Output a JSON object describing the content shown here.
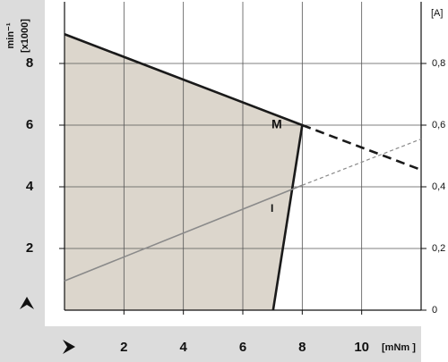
{
  "chart_data": {
    "type": "line",
    "y_label": "min⁻¹",
    "y_unit": "[x1000]",
    "y2_label": "[A]",
    "x_label": "[mNm ]",
    "xlim": [
      0,
      12
    ],
    "xticks": [
      2,
      4,
      6,
      8,
      10
    ],
    "ylim": [
      0,
      10
    ],
    "yticks": [
      2,
      4,
      6,
      8
    ],
    "y2lim": [
      0,
      1
    ],
    "y2ticks": [
      0,
      {
        "value": 0.2,
        "label": "0,2"
      },
      {
        "value": 0.4,
        "label": "0,4"
      },
      {
        "value": 0.6,
        "label": "0,6"
      },
      {
        "value": 0.8,
        "label": "0,8"
      }
    ],
    "grid": true,
    "fill_color": "#dcd6cc",
    "series": [
      {
        "x": [
          0,
          8
        ],
        "values": [
          8.95,
          6
        ],
        "color": "#1a1a1a",
        "style": "solid"
      },
      {
        "x": [
          8,
          12
        ],
        "values": [
          6,
          4.55
        ],
        "color": "#1a1a1a",
        "style": "dashed"
      },
      {
        "x": [
          8,
          7.02
        ],
        "values": [
          6,
          0
        ],
        "color": "#1a1a1a",
        "style": "solid"
      },
      {
        "x": [
          0,
          8
        ],
        "values": [
          0.095,
          0.405
        ],
        "color": "#8a8a8a",
        "style": "solid",
        "axis": "y2"
      },
      {
        "x": [
          8,
          12
        ],
        "values": [
          0.405,
          0.555
        ],
        "color": "#8a8a8a",
        "style": "dashed",
        "axis": "y2"
      }
    ],
    "annotations": [
      "M",
      "I"
    ]
  }
}
